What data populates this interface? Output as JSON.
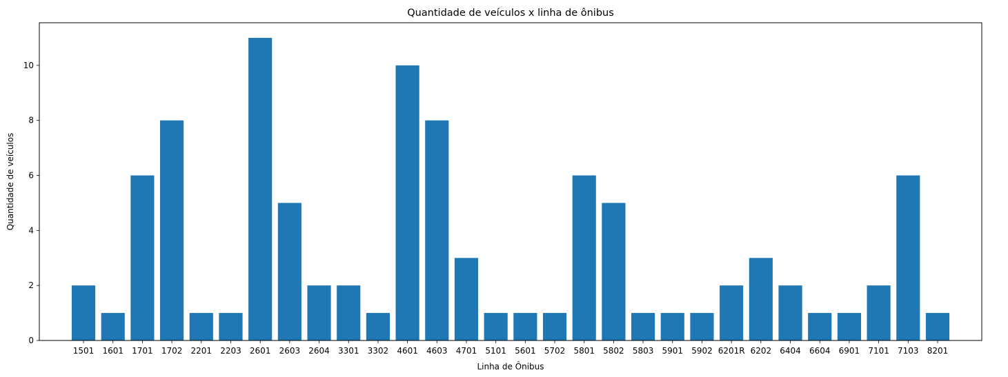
{
  "chart_data": {
    "type": "bar",
    "title": "Quantidade de veículos x linha de ônibus",
    "xlabel": "Linha de Ônibus",
    "ylabel": "Quantidade de veículos",
    "categories": [
      "1501",
      "1601",
      "1701",
      "1702",
      "2201",
      "2203",
      "2601",
      "2603",
      "2604",
      "3301",
      "3302",
      "4601",
      "4603",
      "4701",
      "5101",
      "5601",
      "5702",
      "5801",
      "5802",
      "5803",
      "5901",
      "5902",
      "6201R",
      "6202",
      "6404",
      "6604",
      "6901",
      "7101",
      "7103",
      "8201"
    ],
    "values": [
      2,
      1,
      6,
      8,
      1,
      1,
      11,
      5,
      2,
      2,
      1,
      10,
      8,
      3,
      1,
      1,
      1,
      6,
      5,
      1,
      1,
      1,
      2,
      3,
      2,
      1,
      1,
      2,
      6,
      1
    ],
    "ylim": [
      0,
      11.55
    ],
    "yticks": [
      0,
      2,
      4,
      6,
      8,
      10
    ],
    "grid": false,
    "legend": "none",
    "bar_color": "#1f77b4"
  }
}
